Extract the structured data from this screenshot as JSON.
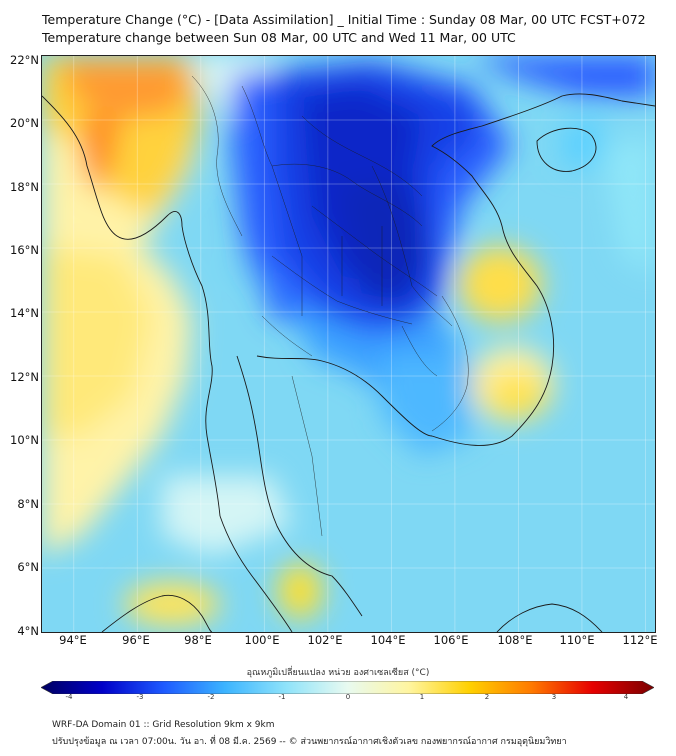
{
  "title": {
    "line1": "Temperature Change (°C) - [Data Assimilation] _ Initial Time : Sunday 08 Mar, 00 UTC FCST+072",
    "line2": "Temperature change between Sun 08 Mar, 00 UTC and Wed 11 Mar, 00 UTC"
  },
  "map": {
    "lat_labels": [
      "22°N",
      "20°N",
      "18°N",
      "16°N",
      "14°N",
      "12°N",
      "10°N",
      "8°N",
      "6°N",
      "4°N"
    ],
    "lon_labels": [
      "94°E",
      "96°E",
      "98°E",
      "100°E",
      "102°E",
      "104°E",
      "106°E",
      "108°E",
      "110°E",
      "112°E"
    ],
    "lat_range": [
      4,
      22
    ],
    "lon_range": [
      93,
      112.3
    ]
  },
  "colorbar": {
    "title": "อุณหภูมิเปลี่ยนแปลง หน่วย องศาเซลเซียส (°C)",
    "ticks": [
      "-4",
      "-3",
      "-2",
      "-1",
      "0",
      "1",
      "2",
      "3",
      "4"
    ],
    "range": [
      -4,
      4
    ],
    "colors": [
      "#000060",
      "#0000c8",
      "#1e5aff",
      "#3cb4ff",
      "#8fe3fa",
      "#e8faf0",
      "#fff5a0",
      "#ffd000",
      "#ff7a00",
      "#e60000",
      "#7a0000"
    ]
  },
  "footer": {
    "line1": "WRF-DA Domain 01 :: Grid Resolution 9km x 9km",
    "line2": "ปรับปรุงข้อมูล ณ เวลา 07:00น. วัน อา. ที่ 08 มี.ค. 2569 -- © ส่วนพยากรณ์อากาศเชิงตัวเลข กองพยากรณ์อากาศ กรมอุตุนิยมวิทยา"
  }
}
